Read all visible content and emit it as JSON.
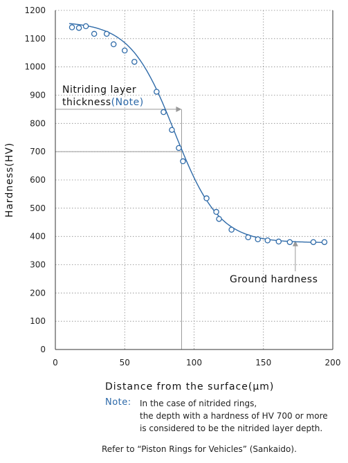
{
  "chart_data": {
    "type": "scatter",
    "xlabel": "Distance from the surface(μm)",
    "ylabel": "Hardness(HV)",
    "xlim": [
      0,
      200
    ],
    "ylim": [
      0,
      1200
    ],
    "x_ticks": [
      "0",
      "50",
      "100",
      "150",
      "200"
    ],
    "y_ticks": [
      "0",
      "100",
      "200",
      "300",
      "400",
      "500",
      "600",
      "700",
      "800",
      "900",
      "1000",
      "1100",
      "1200"
    ],
    "grid": "dotted",
    "series": [
      {
        "x": [
          12,
          17,
          22,
          28,
          37,
          42,
          50,
          57,
          73,
          78,
          84,
          89,
          92,
          109,
          116,
          118,
          127,
          139,
          146,
          153,
          161,
          169,
          186,
          194
        ],
        "y": [
          1140,
          1138,
          1144,
          1117,
          1117,
          1080,
          1058,
          1018,
          912,
          840,
          777,
          713,
          666,
          535,
          487,
          462,
          424,
          397,
          390,
          386,
          382,
          380,
          380,
          380
        ],
        "fit_curve": true,
        "color": "#2e6aa8"
      }
    ],
    "annotations": {
      "nitriding_line1": "Nitriding layer",
      "nitriding_line2": "thickness",
      "nitriding_note": "(Note)",
      "nitriding_arrow_y": 850,
      "nitriding_arrow_to_x": 91,
      "hv700_ref_y": 700,
      "hv700_ref_x": 91,
      "ground_hardness": "Ground hardness",
      "ground_arrow_x": 173,
      "ground_arrow_tip_y": 385
    }
  },
  "note": {
    "label": "Note:",
    "line1": "In the case of nitrided rings,",
    "line2": "the depth with a hardness of HV 700 or more",
    "line3": "is considered to be the nitrided layer depth."
  },
  "source": "Refer to “Piston Rings for Vehicles” (Sankaido).",
  "colors": {
    "accent": "#2b68a8",
    "curve": "#2e6aa8",
    "arrow": "#999999",
    "grid": "#888888"
  }
}
